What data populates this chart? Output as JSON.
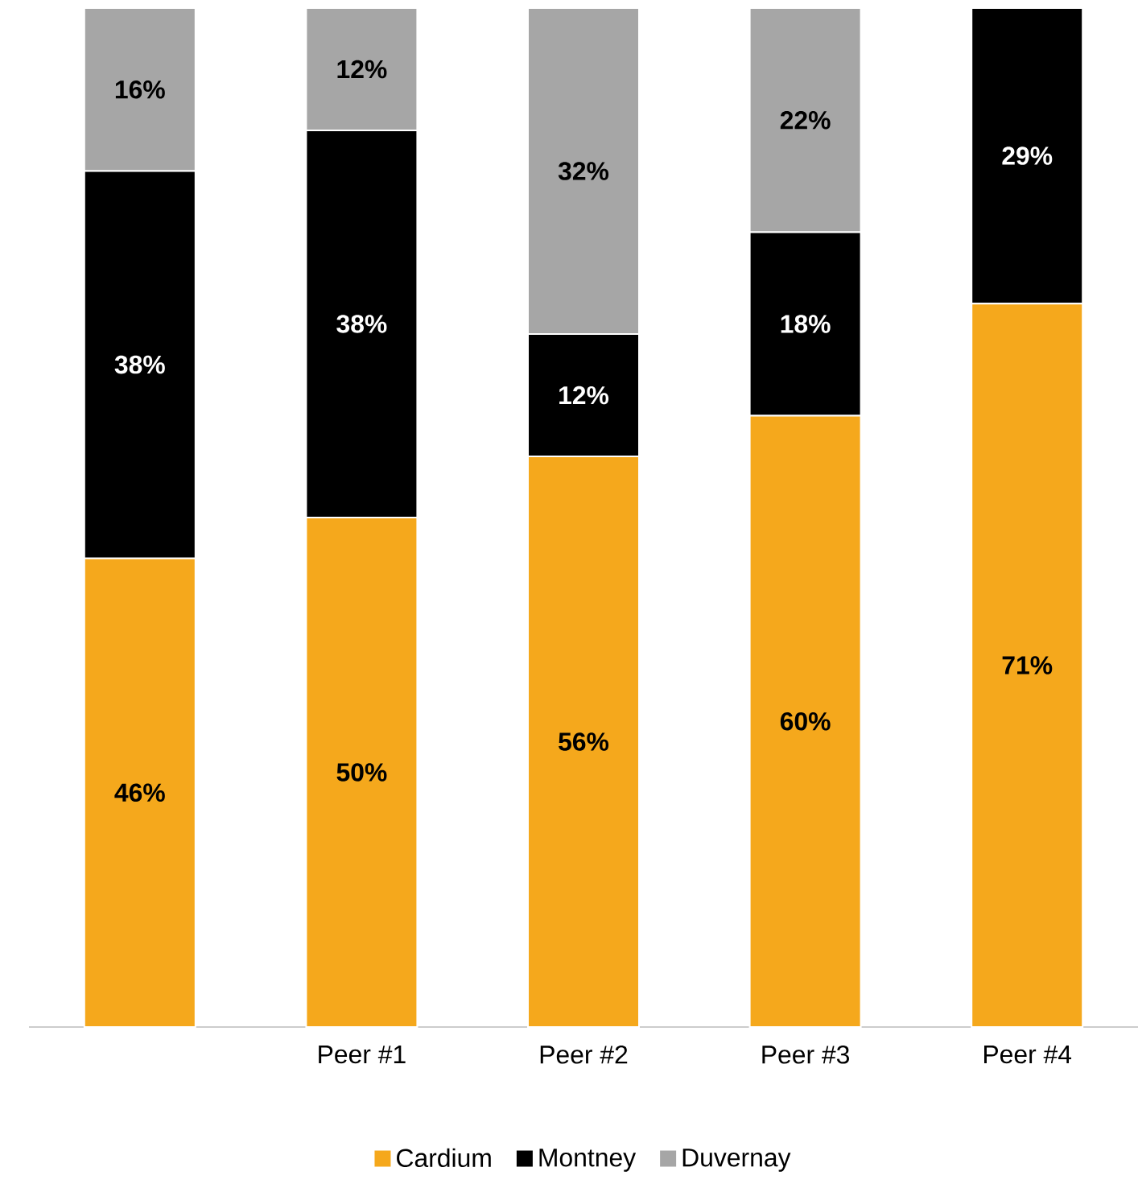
{
  "chart_data": {
    "type": "bar",
    "stacked": true,
    "categories": [
      null,
      "Peer #1",
      "Peer #2",
      "Peer #3",
      "Peer #4"
    ],
    "tick_labels": "x",
    "legend": "bottom",
    "series": [
      {
        "name": "Cardium",
        "color": "#f5a81c",
        "values": [
          46,
          50,
          56,
          60,
          71
        ],
        "value_labels": [
          "46%",
          "50%",
          "56%",
          "60%",
          "71%"
        ]
      },
      {
        "name": "Montney",
        "color": "#000000",
        "values": [
          38,
          38,
          12,
          18,
          29
        ],
        "value_labels": [
          "38%",
          "38%",
          "12%",
          "18%",
          "29%"
        ]
      },
      {
        "name": "Duvernay",
        "color": "#a6a6a6",
        "values": [
          16,
          12,
          32,
          22,
          null
        ],
        "value_labels": [
          "16%",
          "12%",
          "32%",
          "22%",
          null
        ]
      }
    ]
  }
}
